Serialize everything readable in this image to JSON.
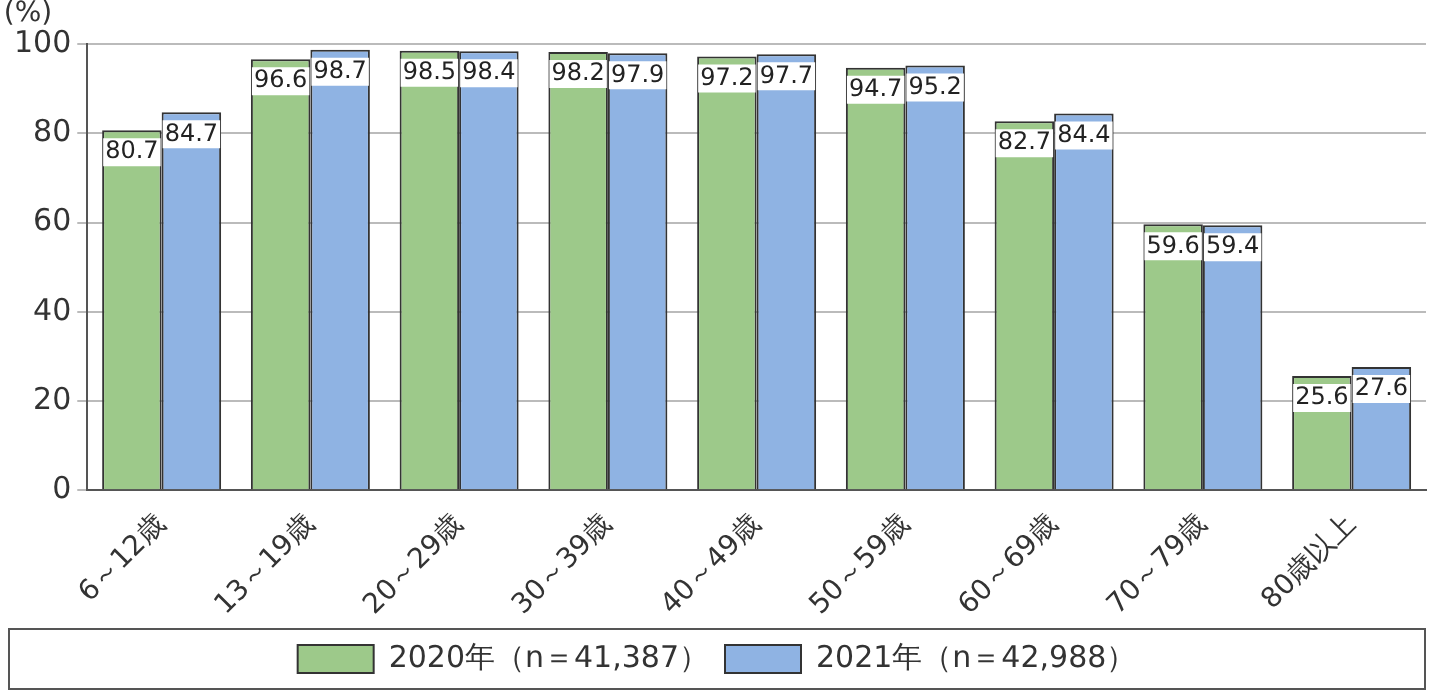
{
  "chart_data": {
    "type": "bar",
    "ylabel": "(%)",
    "categories": [
      "6～12歳",
      "13～19歳",
      "20～29歳",
      "30～39歳",
      "40～49歳",
      "50～59歳",
      "60～69歳",
      "70～79歳",
      "80歳以上"
    ],
    "series": [
      {
        "name": "2020年（n＝41,387）",
        "color": "#9dc98a",
        "values": [
          80.7,
          96.6,
          98.5,
          98.2,
          97.2,
          94.7,
          82.7,
          59.6,
          25.6
        ]
      },
      {
        "name": "2021年（n＝42,988）",
        "color": "#8fb3e3",
        "values": [
          84.7,
          98.7,
          98.4,
          97.9,
          97.7,
          95.2,
          84.4,
          59.4,
          27.6
        ]
      }
    ],
    "ylim": [
      0,
      100
    ],
    "yticks": [
      0,
      20,
      40,
      60,
      80,
      100
    ],
    "grid": "y",
    "legend": "bottom",
    "data_labels": true
  }
}
